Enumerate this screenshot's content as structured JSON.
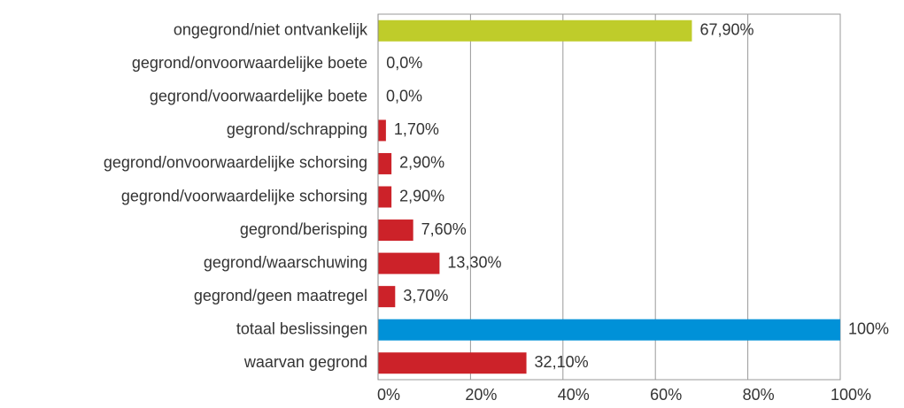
{
  "chart_data": {
    "type": "hbar",
    "categories": [
      "ongegrond/niet ontvankelijk",
      "gegrond/onvoorwaardelijke boete",
      "gegrond/voorwaardelijke boete",
      "gegrond/schrapping",
      "gegrond/onvoorwaardelijke schorsing",
      "gegrond/voorwaardelijke schorsing",
      "gegrond/berisping",
      "gegrond/waarschuwing",
      "gegrond/geen maatregel",
      "totaal beslissingen",
      "waarvan gegrond"
    ],
    "values": [
      67.9,
      0.04,
      0,
      1.7,
      2.9,
      2.9,
      7.6,
      13.3,
      3.7,
      100,
      32.1
    ],
    "value_labels": [
      "67,90%",
      "0,0%",
      "0,0%",
      "1,70%",
      "2,90%",
      "2,90%",
      "7,60%",
      "13,30%",
      "3,70%",
      "100%",
      "32,10%"
    ],
    "colors": [
      "#bfcc2a",
      "#cc2229",
      "#cc2229",
      "#cc2229",
      "#cc2229",
      "#cc2229",
      "#cc2229",
      "#cc2229",
      "#cc2229",
      "#0091d8",
      "#cc2229"
    ],
    "xlim": [
      0,
      100
    ],
    "xticks": [
      {
        "value": 0,
        "label": "0%"
      },
      {
        "value": 20,
        "label": "20%"
      },
      {
        "value": 40,
        "label": "40%"
      },
      {
        "value": 60,
        "label": "60%"
      },
      {
        "value": 80,
        "label": "80%"
      },
      {
        "value": 100,
        "label": "100%"
      }
    ],
    "grid": true
  }
}
